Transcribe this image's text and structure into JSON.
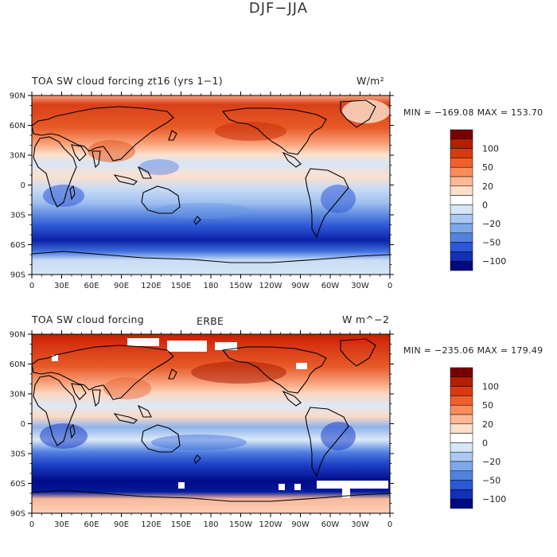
{
  "figure_title": "DJF−JJA",
  "panels": [
    {
      "title_left": "TOA SW cloud forcing zt16 (yrs 1−1)",
      "title_center": "",
      "units": "W/m²",
      "stats": "MIN = −169.08  MAX = 153.70",
      "min": -169.08,
      "max": 153.7
    },
    {
      "title_left": "TOA SW cloud forcing",
      "title_center": "ERBE",
      "units": "W m^−2",
      "stats": "MIN = −235.06  MAX = 179.49",
      "min": -235.06,
      "max": 179.49
    }
  ],
  "lat_ticks": [
    "90N",
    "60N",
    "30N",
    "0",
    "30S",
    "60S",
    "90S"
  ],
  "lon_ticks": [
    "0",
    "30E",
    "60E",
    "90E",
    "120E",
    "150E",
    "180",
    "150W",
    "120W",
    "90W",
    "60W",
    "30W",
    "0"
  ],
  "colorbar": {
    "labels": [
      "100",
      "50",
      "20",
      "0",
      "−20",
      "−50",
      "−100"
    ],
    "colors": [
      "#7a0000",
      "#b31f00",
      "#d83a10",
      "#f0602a",
      "#fc8c5a",
      "#fdb896",
      "#fde0cc",
      "#ffffff",
      "#d6e6f8",
      "#aac8f2",
      "#7fa8ea",
      "#5381e0",
      "#2c57d6",
      "#1230b8",
      "#000a80"
    ]
  }
}
